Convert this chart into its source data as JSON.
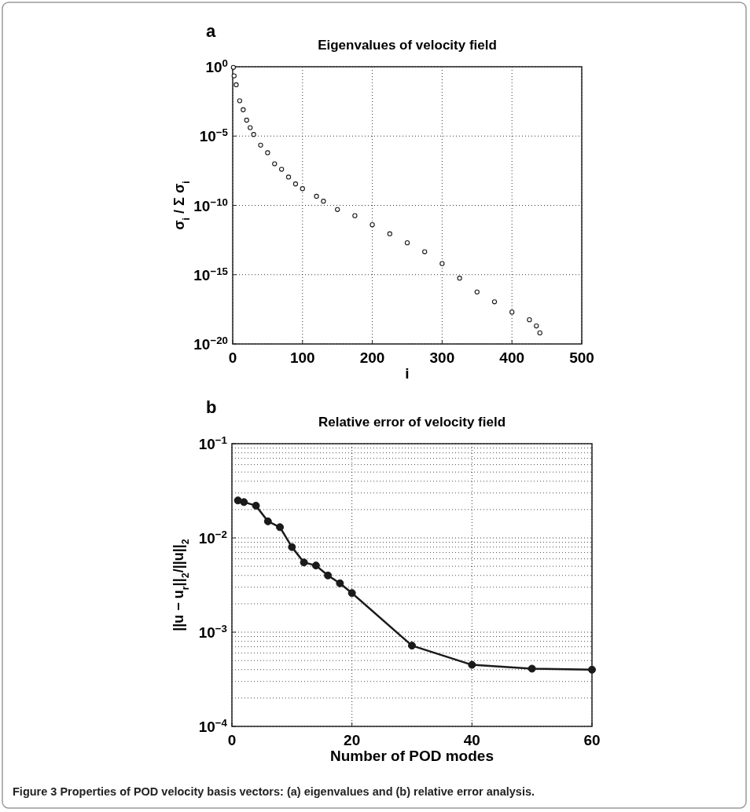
{
  "chart_data": [
    {
      "type": "scatter",
      "title": "Eigenvalues of velocity field",
      "xlabel": "i",
      "ylabel": "σ$_{i}$ / Σ σ$_{i}$",
      "annotations": [
        "a"
      ],
      "x": [
        1,
        2,
        5,
        10,
        15,
        20,
        25,
        30,
        40,
        50,
        60,
        70,
        80,
        90,
        100,
        120,
        130,
        150,
        175,
        200,
        225,
        250,
        275,
        300,
        325,
        350,
        375,
        400,
        425,
        435,
        440
      ],
      "series": [
        {
          "color": "#1a1a1a",
          "values": [
            0.9,
            0.22,
            0.05,
            0.0035,
            0.00079,
            0.00014,
            4e-05,
            1.3e-05,
            2.2e-06,
            6.3e-07,
            1e-07,
            4e-08,
            1.1e-08,
            3.5e-09,
            1.6e-09,
            4.5e-10,
            2e-10,
            5e-11,
            1.8e-11,
            4e-12,
            8.9e-13,
            2e-13,
            4.5e-14,
            6.3e-15,
            5.6e-16,
            5.6e-17,
            1.1e-17,
            2e-18,
            5.6e-19,
            2e-19,
            6.3e-20
          ]
        }
      ],
      "xlim": [
        0,
        500
      ],
      "xticks": [
        0,
        100,
        200,
        300,
        400,
        500
      ],
      "ylim": [
        1e-20,
        1
      ],
      "yticks": [
        {
          "value": 1e-20,
          "label": "10$^{−20}$"
        },
        {
          "value": 1e-15,
          "label": "10$^{−15}$"
        },
        {
          "value": 1e-10,
          "label": "10$^{−10}$"
        },
        {
          "value": 1e-05,
          "label": "10$^{−5}$"
        },
        {
          "value": 1,
          "label": "10$^{0}$"
        }
      ],
      "log": "y",
      "grid": true,
      "marker": "circle"
    },
    {
      "type": "line",
      "title": "Relative error of velocity field",
      "xlabel": "Number of POD modes",
      "ylabel": "||u − u$_{r}$||$_{2}$/||u||$_{2}$",
      "annotations": [
        "b",
        "Figure 3 Properties of POD velocity basis vectors: (a) eigenvalues and (b) relative error analysis."
      ],
      "x": [
        1,
        2,
        4,
        6,
        8,
        10,
        12,
        14,
        16,
        18,
        20,
        30,
        40,
        50,
        60
      ],
      "series": [
        {
          "color": "#1a1a1a",
          "values": [
            0.025,
            0.024,
            0.022,
            0.015,
            0.013,
            0.008,
            0.0055,
            0.0051,
            0.004,
            0.0033,
            0.0026,
            0.00072,
            0.00045,
            0.00041,
            0.0004
          ]
        }
      ],
      "xlim": [
        0,
        60
      ],
      "xticks": [
        0,
        20,
        40,
        60
      ],
      "ylim": [
        0.0001,
        0.1
      ],
      "yticks": [
        {
          "value": 0.0001,
          "label": "10$^{−4}$"
        },
        {
          "value": 0.001,
          "label": "10$^{−3}$"
        },
        {
          "value": 0.01,
          "label": "10$^{−2}$"
        },
        {
          "value": 0.1,
          "label": "10$^{−1}$"
        }
      ],
      "log": "y",
      "grid": true,
      "marker": "circle",
      "line_style": "solid"
    }
  ]
}
